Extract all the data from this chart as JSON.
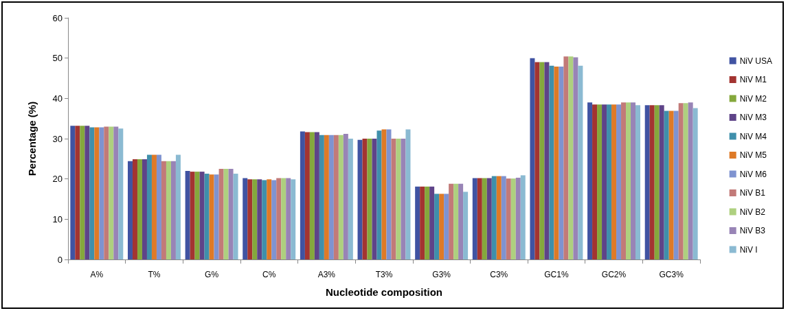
{
  "chart_data": {
    "type": "bar",
    "xlabel": "Nucleotide composition",
    "ylabel": "Percentage (%)",
    "categories": [
      "A%",
      "T%",
      "G%",
      "C%",
      "A3%",
      "T3%",
      "G3%",
      "C3%",
      "GC1%",
      "GC2%",
      "GC3%"
    ],
    "ylim": [
      0,
      60
    ],
    "yticks": [
      0,
      10,
      20,
      30,
      40,
      50,
      60
    ],
    "grid": false,
    "legend": "right",
    "series": [
      {
        "name": "NiV USA",
        "color": "#4053a2",
        "values": [
          33.2,
          24.4,
          22.0,
          20.2,
          31.8,
          29.7,
          18.1,
          20.2,
          50.0,
          39.0,
          38.3
        ]
      },
      {
        "name": "NiV M1",
        "color": "#a33431",
        "values": [
          33.2,
          24.9,
          21.8,
          19.9,
          31.6,
          30.0,
          18.1,
          20.2,
          49.0,
          38.5,
          38.3
        ]
      },
      {
        "name": "NiV M2",
        "color": "#85a83c",
        "values": [
          33.2,
          24.9,
          21.8,
          19.9,
          31.6,
          30.0,
          18.1,
          20.2,
          49.0,
          38.5,
          38.3
        ]
      },
      {
        "name": "NiV M3",
        "color": "#5e4488",
        "values": [
          33.2,
          24.9,
          21.8,
          19.9,
          31.6,
          30.0,
          18.1,
          20.2,
          49.0,
          38.5,
          38.3
        ]
      },
      {
        "name": "NiV M4",
        "color": "#3f8fab",
        "values": [
          32.8,
          26.0,
          21.3,
          19.7,
          30.9,
          32.0,
          16.3,
          20.7,
          48.1,
          38.5,
          36.9
        ]
      },
      {
        "name": "NiV M5",
        "color": "#de7a27",
        "values": [
          32.8,
          26.0,
          21.1,
          19.9,
          30.9,
          32.3,
          16.3,
          20.7,
          47.9,
          38.5,
          36.9
        ]
      },
      {
        "name": "NiV M6",
        "color": "#7f93d0",
        "values": [
          32.8,
          26.0,
          21.1,
          19.7,
          30.9,
          32.3,
          16.3,
          20.7,
          47.9,
          38.5,
          36.9
        ]
      },
      {
        "name": "NiV B1",
        "color": "#c27a78",
        "values": [
          33.0,
          24.4,
          22.5,
          20.2,
          30.9,
          30.0,
          18.8,
          20.1,
          50.4,
          39.0,
          38.8
        ]
      },
      {
        "name": "NiV B2",
        "color": "#aed07f",
        "values": [
          33.0,
          24.4,
          22.5,
          20.2,
          30.9,
          30.0,
          18.8,
          20.1,
          50.4,
          39.0,
          38.8
        ]
      },
      {
        "name": "NiV B3",
        "color": "#9884b6",
        "values": [
          33.0,
          24.4,
          22.5,
          20.2,
          31.2,
          30.0,
          18.8,
          20.3,
          50.2,
          39.0,
          39.0
        ]
      },
      {
        "name": "NiV I",
        "color": "#8bbad2",
        "values": [
          32.5,
          26.0,
          21.3,
          19.9,
          30.0,
          32.3,
          16.8,
          20.9,
          48.1,
          38.3,
          37.6
        ]
      }
    ]
  }
}
